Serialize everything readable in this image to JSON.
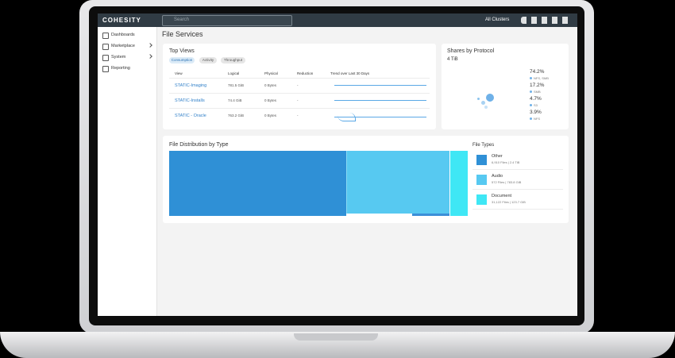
{
  "header": {
    "logo": "COHESITY",
    "search": "Search",
    "cluster": "All Clusters"
  },
  "sidebar": {
    "items": [
      "Dashboards",
      "Marketplace",
      "System",
      "Reporting"
    ]
  },
  "page": {
    "title": "File Services"
  },
  "top_views": {
    "title": "Top Views",
    "tabs": [
      "Consumption",
      "Activity",
      "Throughput"
    ],
    "columns": [
      "View",
      "Logical",
      "Physical",
      "Reduction",
      "Trend over Last 30 Days"
    ],
    "rows": [
      [
        "STATIC-Imaging",
        "781.5 GiB",
        "0 Bytes",
        "-"
      ],
      [
        "STATIC-Installs",
        "74.4 GiB",
        "0 Bytes",
        "-"
      ],
      [
        "STATIC - Oracle",
        "763.2 GiB",
        "0 Bytes",
        "-"
      ]
    ]
  },
  "shares": {
    "title": "Shares by Protocol",
    "total": "4 TiB",
    "items": [
      {
        "value": "74.2%",
        "label": "NFS, SMB"
      },
      {
        "value": "17.2%",
        "label": "SMB"
      },
      {
        "value": "4.7%",
        "label": "S3"
      },
      {
        "value": "3.9%",
        "label": "NFS"
      }
    ]
  },
  "distribution": {
    "title": "File Distribution by Type",
    "legend_title": "File Types",
    "types": [
      {
        "name": "Other",
        "detail": "6,910 Files | 2.4 TiB"
      },
      {
        "name": "Audio",
        "detail": "572 Files | 783.8 GiB"
      },
      {
        "name": "Document",
        "detail": "31,122 Files | 123.7 GiB"
      }
    ]
  }
}
